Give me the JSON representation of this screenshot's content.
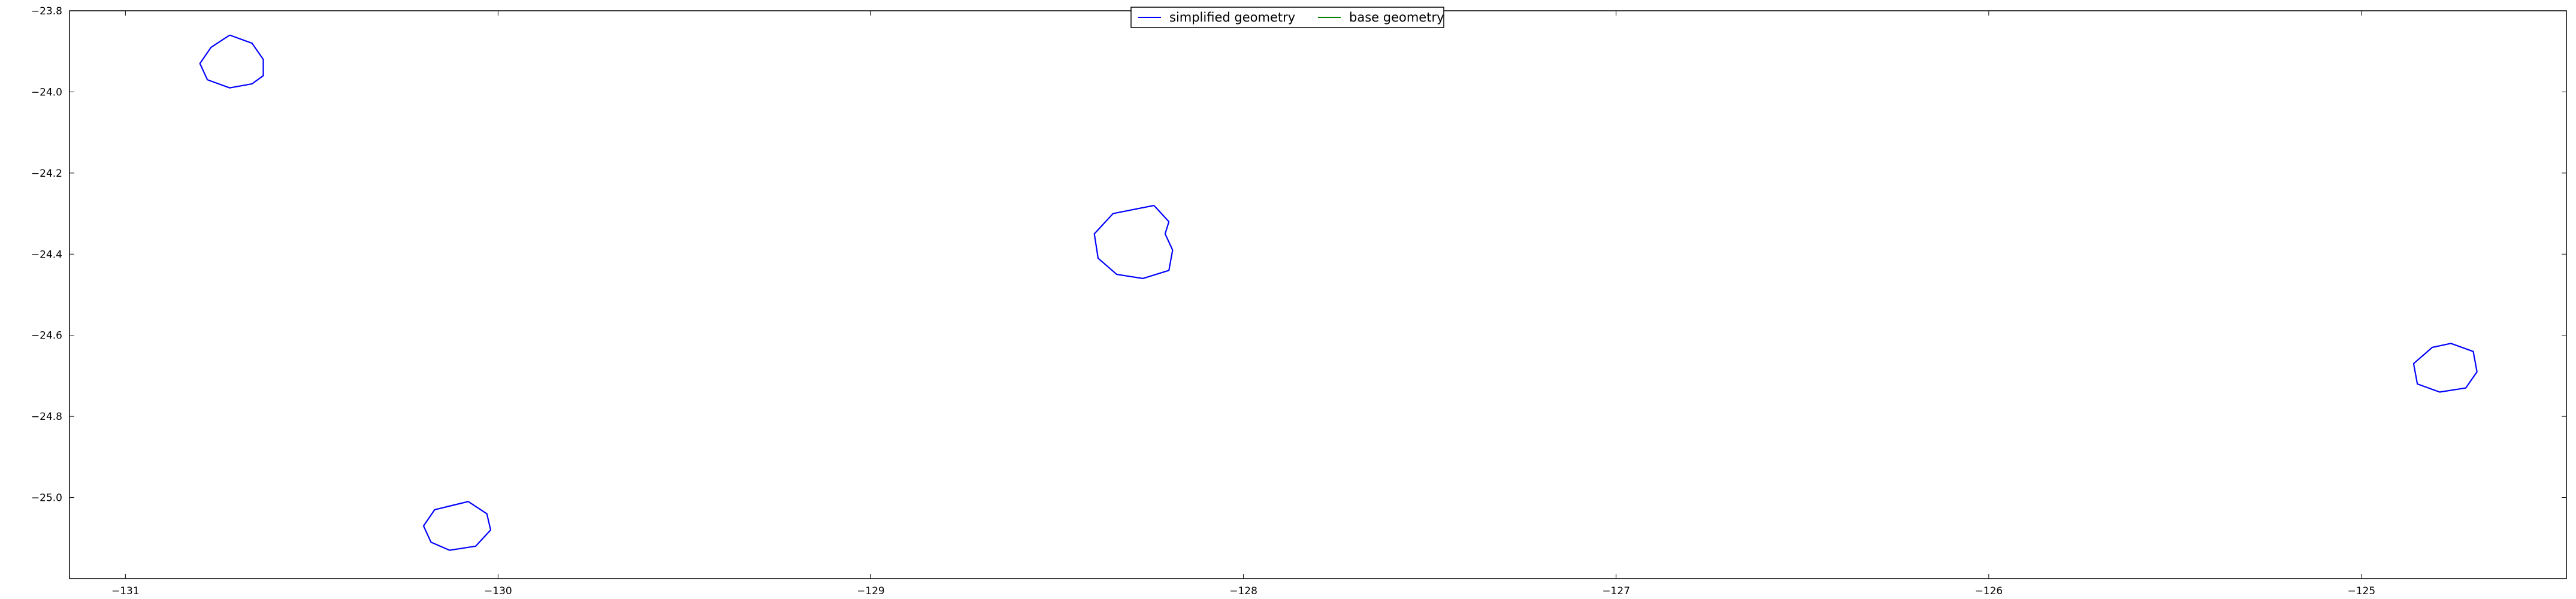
{
  "chart_data": {
    "type": "line",
    "title": "",
    "xlabel": "",
    "ylabel": "",
    "xlim": [
      -131.15,
      -124.45
    ],
    "ylim": [
      -25.2,
      -23.8
    ],
    "xticks": [
      -131,
      -130,
      -129,
      -128,
      -127,
      -126,
      -125
    ],
    "xtick_labels": [
      "−131",
      "−130",
      "−129",
      "−128",
      "−127",
      "−126",
      "−125"
    ],
    "yticks": [
      -23.8,
      -24.0,
      -24.2,
      -24.4,
      -24.6,
      -24.8,
      -25.0
    ],
    "ytick_labels": [
      "−23.8",
      "−24.0",
      "−24.2",
      "−24.4",
      "−24.6",
      "−24.8",
      "−25.0"
    ],
    "grid": false,
    "legend": {
      "position": "top-center",
      "entries": [
        {
          "label": "simplified geometry",
          "color": "#0000ff"
        },
        {
          "label": "base geometry",
          "color": "#008000"
        }
      ]
    },
    "series": [
      {
        "name": "simplified geometry",
        "color": "#0000ff",
        "polygons": [
          [
            [
              -130.72,
              -23.86
            ],
            [
              -130.66,
              -23.88
            ],
            [
              -130.63,
              -23.92
            ],
            [
              -130.63,
              -23.96
            ],
            [
              -130.66,
              -23.98
            ],
            [
              -130.72,
              -23.99
            ],
            [
              -130.78,
              -23.97
            ],
            [
              -130.8,
              -23.93
            ],
            [
              -130.77,
              -23.89
            ],
            [
              -130.72,
              -23.86
            ]
          ],
          [
            [
              -128.24,
              -24.28
            ],
            [
              -128.2,
              -24.32
            ],
            [
              -128.21,
              -24.35
            ],
            [
              -128.19,
              -24.39
            ],
            [
              -128.2,
              -24.44
            ],
            [
              -128.27,
              -24.46
            ],
            [
              -128.34,
              -24.45
            ],
            [
              -128.39,
              -24.41
            ],
            [
              -128.4,
              -24.35
            ],
            [
              -128.35,
              -24.3
            ],
            [
              -128.24,
              -24.28
            ]
          ],
          [
            [
              -130.08,
              -25.01
            ],
            [
              -130.03,
              -25.04
            ],
            [
              -130.02,
              -25.08
            ],
            [
              -130.06,
              -25.12
            ],
            [
              -130.13,
              -25.13
            ],
            [
              -130.18,
              -25.11
            ],
            [
              -130.2,
              -25.07
            ],
            [
              -130.17,
              -25.03
            ],
            [
              -130.08,
              -25.01
            ]
          ],
          [
            [
              -124.76,
              -24.62
            ],
            [
              -124.7,
              -24.64
            ],
            [
              -124.69,
              -24.69
            ],
            [
              -124.72,
              -24.73
            ],
            [
              -124.79,
              -24.74
            ],
            [
              -124.85,
              -24.72
            ],
            [
              -124.86,
              -24.67
            ],
            [
              -124.81,
              -24.63
            ],
            [
              -124.76,
              -24.62
            ]
          ]
        ]
      },
      {
        "name": "base geometry",
        "color": "#008000",
        "polygons": []
      }
    ]
  }
}
